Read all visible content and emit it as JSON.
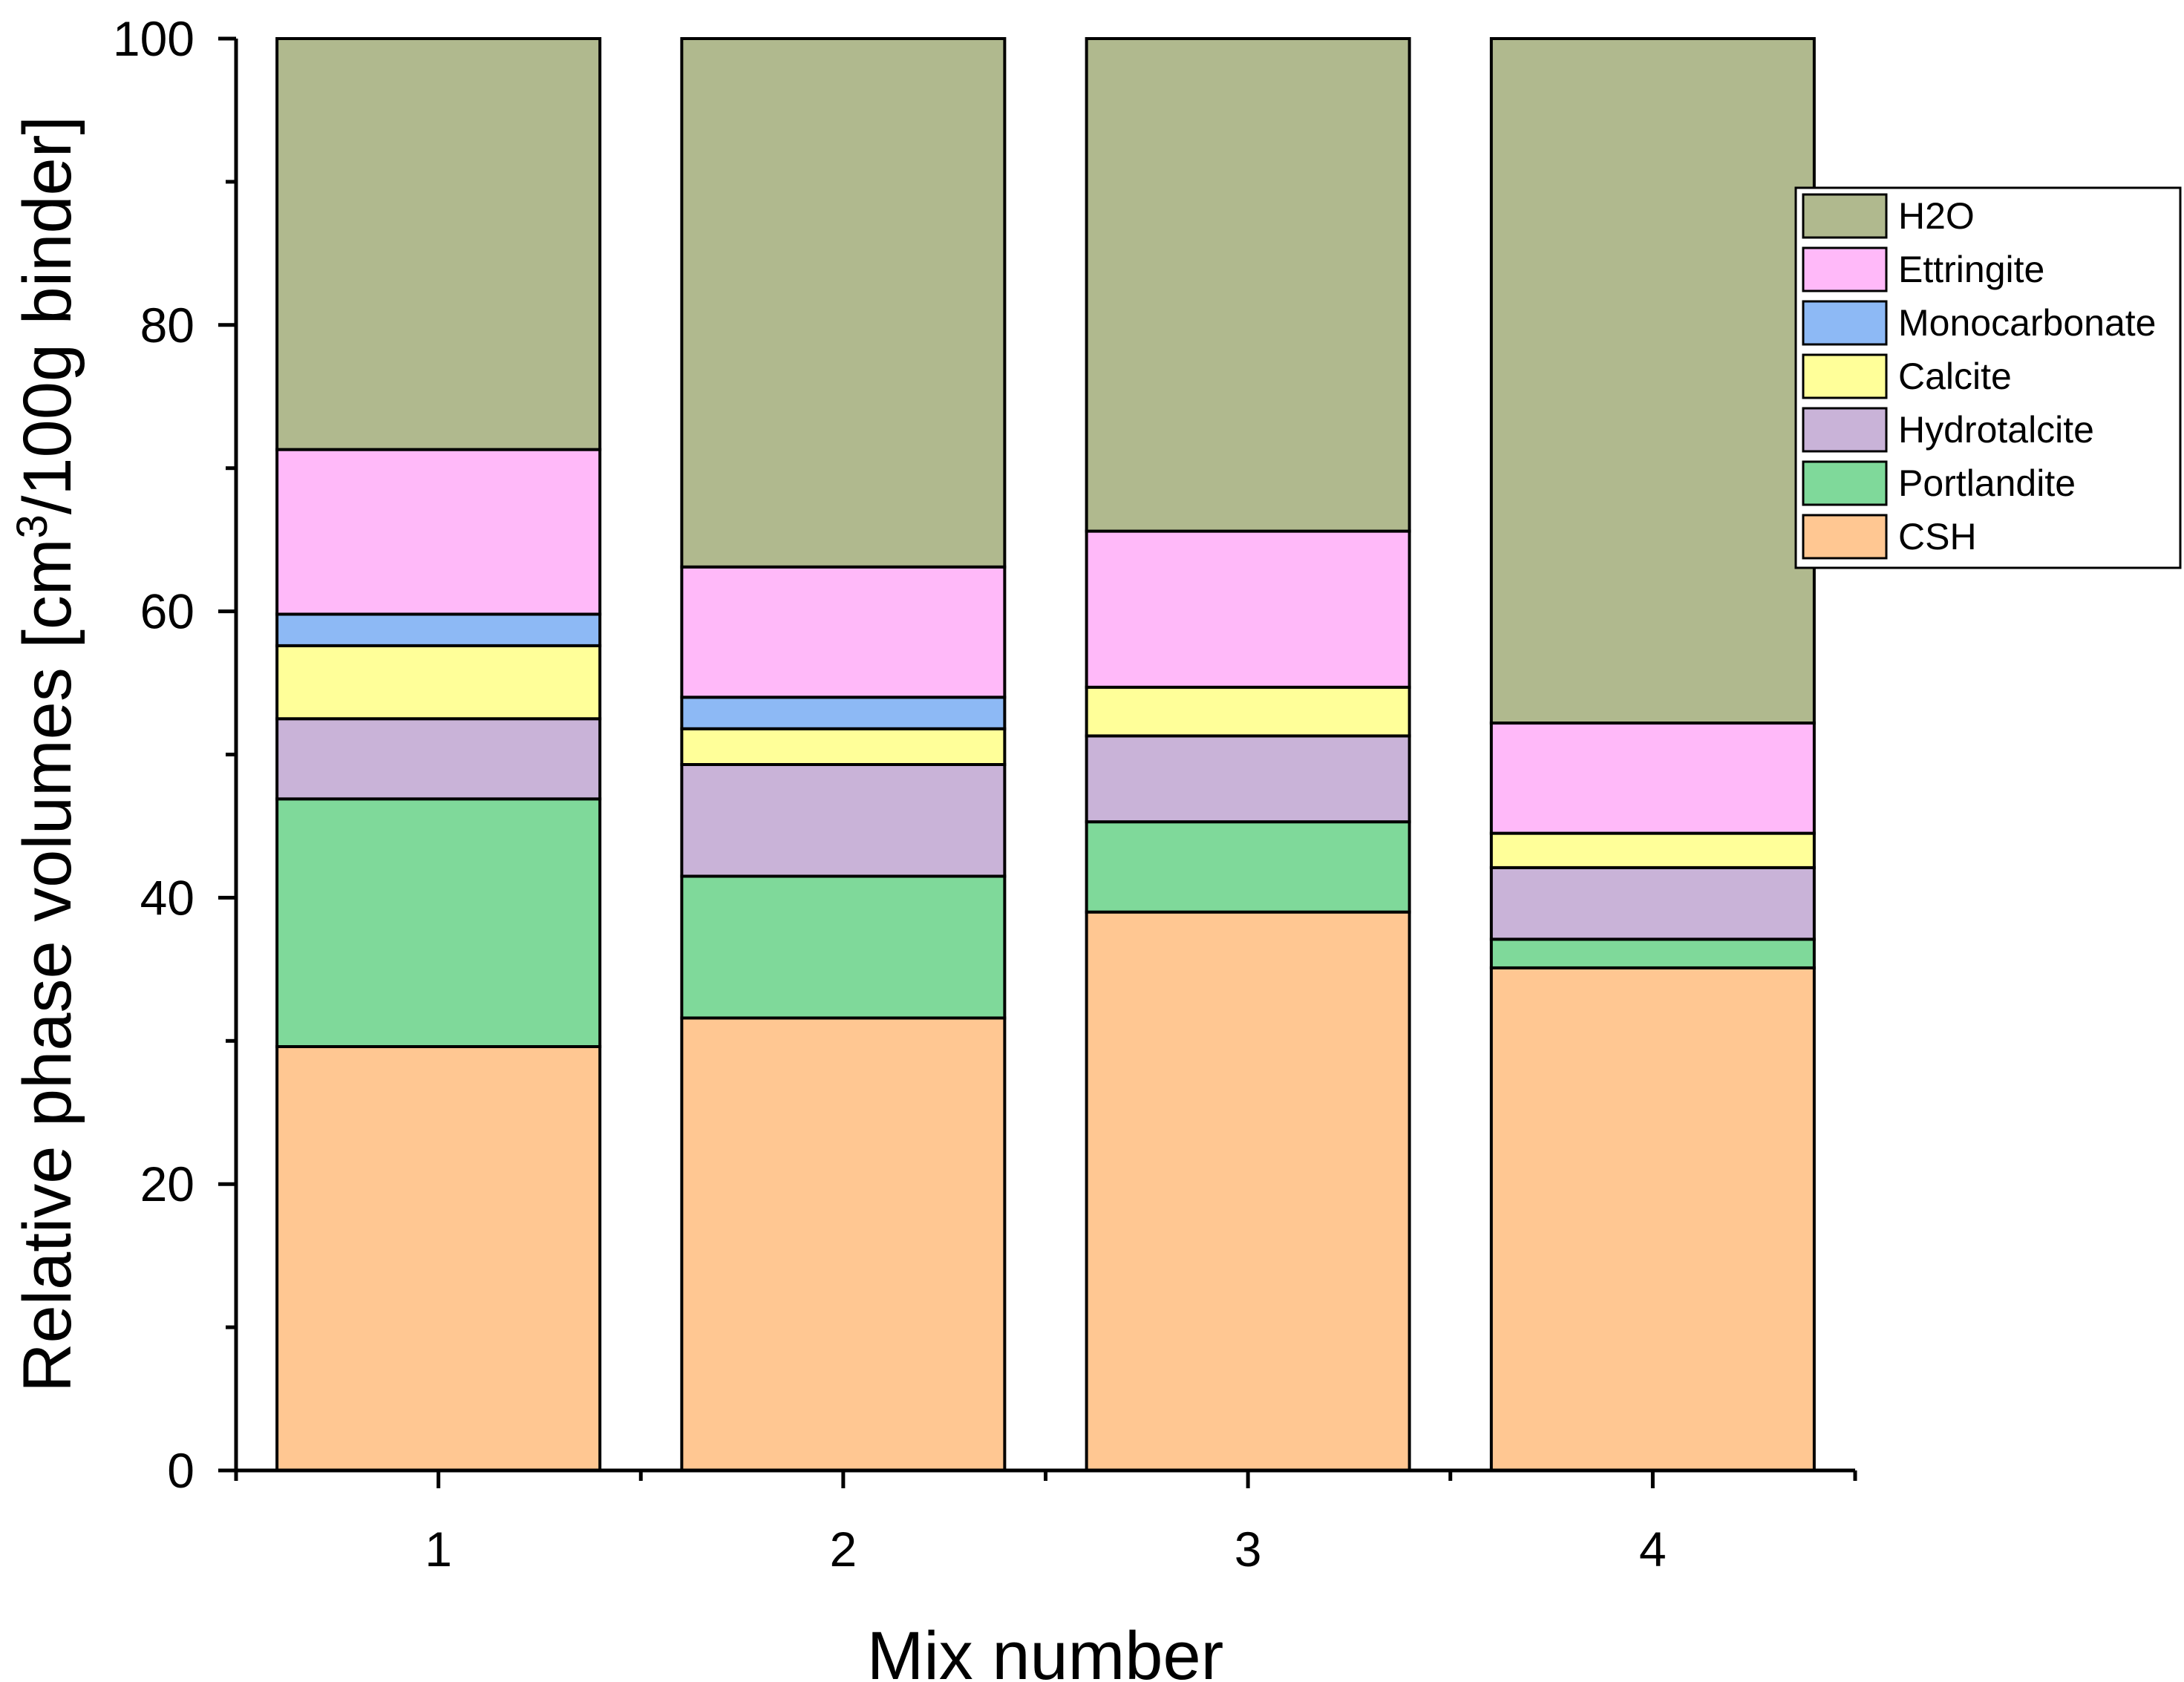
{
  "chart_data": {
    "type": "bar",
    "stacked": true,
    "categories": [
      "1",
      "2",
      "3",
      "4"
    ],
    "xlabel": "Mix number",
    "ylabel": {
      "prefix": "Relative phase volumes [cm",
      "superscript": "3",
      "suffix": "/100g binder]"
    },
    "ylim": [
      0,
      100
    ],
    "yticks": [
      0,
      20,
      40,
      60,
      80,
      100
    ],
    "legend_position": "right",
    "series": [
      {
        "name": "CSH",
        "color": "#FFC792",
        "values": [
          29.6,
          31.6,
          39.0,
          35.1
        ]
      },
      {
        "name": "Portlandite",
        "color": "#7FD99A",
        "values": [
          17.3,
          9.9,
          6.3,
          2.0
        ]
      },
      {
        "name": "Hydrotalcite",
        "color": "#C9B3D8",
        "values": [
          5.6,
          7.8,
          6.0,
          5.0
        ]
      },
      {
        "name": "Calcite",
        "color": "#FFFF99",
        "values": [
          5.1,
          2.5,
          3.4,
          2.4
        ]
      },
      {
        "name": "Monocarbonate",
        "color": "#8DB9F5",
        "values": [
          2.2,
          2.2,
          0.0,
          0.0
        ]
      },
      {
        "name": "Ettringite",
        "color": "#FFB9F9",
        "values": [
          11.5,
          9.1,
          10.9,
          7.7
        ]
      },
      {
        "name": "H2O",
        "color": "#B0B98E",
        "values": [
          28.7,
          36.9,
          34.4,
          47.8
        ]
      }
    ]
  }
}
